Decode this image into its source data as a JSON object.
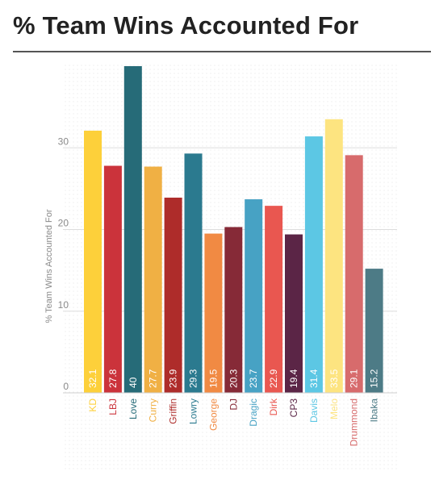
{
  "page": {
    "title": "% Team Wins Accounted For"
  },
  "chart_data": {
    "type": "bar",
    "title": "% Team Wins Accounted For",
    "xlabel": "",
    "ylabel": "% Team Wins Accounted For",
    "ylim": [
      0,
      40
    ],
    "yticks": [
      0,
      10,
      20,
      30
    ],
    "grid": true,
    "legend": "none",
    "categories": [
      "KD",
      "LBJ",
      "Love",
      "Curry",
      "Griffin",
      "Lowry",
      "George",
      "DJ",
      "Dragic",
      "Dirk",
      "CP3",
      "Davis",
      "Melo",
      "Drummond",
      "Ibaka"
    ],
    "values": [
      32.1,
      27.8,
      40,
      27.7,
      23.9,
      29.3,
      19.5,
      20.3,
      23.7,
      22.9,
      19.4,
      31.4,
      33.5,
      29.1,
      15.2
    ],
    "value_labels": [
      "32.1",
      "27.8",
      "40",
      "27.7",
      "23.9",
      "29.3",
      "19.5",
      "20.3",
      "23.7",
      "22.9",
      "19.4",
      "31.4",
      "33.5",
      "29.1",
      "15.2"
    ],
    "colors": [
      "#fdd03a",
      "#cb333b",
      "#266b78",
      "#f0b044",
      "#ae2c2a",
      "#2b7a8f",
      "#f18a43",
      "#862a37",
      "#47a2c4",
      "#e95750",
      "#5b2546",
      "#5cc7e4",
      "#fde480",
      "#d76b6c",
      "#4d7b86"
    ],
    "label_colors": [
      "#fdd03a",
      "#cb333b",
      "#266b78",
      "#f0b044",
      "#ae2c2a",
      "#2b7a8f",
      "#f18a43",
      "#862a37",
      "#47a2c4",
      "#e95750",
      "#5b2546",
      "#5cc7e4",
      "#fde480",
      "#d76b6c",
      "#4d7b86"
    ]
  }
}
